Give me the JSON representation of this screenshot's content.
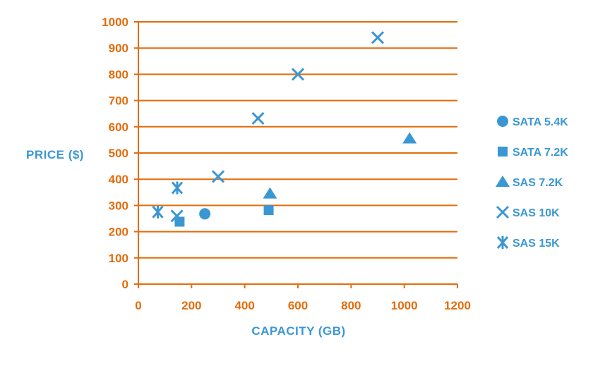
{
  "chart_data": {
    "type": "scatter",
    "title": "",
    "xlabel": "CAPACITY (GB)",
    "ylabel": "PRICE ($)",
    "xlim": [
      0,
      1200
    ],
    "ylim": [
      0,
      1000
    ],
    "xticks": [
      0,
      200,
      400,
      600,
      800,
      1000,
      1200
    ],
    "yticks": [
      0,
      100,
      200,
      300,
      400,
      500,
      600,
      700,
      800,
      900,
      1000
    ],
    "grid": "horizontal",
    "legend_position": "right",
    "axis_color": "#E46C0A",
    "series": [
      {
        "name": "SATA 5.4K",
        "marker": "circle",
        "color": "#3B97D3",
        "points": [
          [
            250,
            268
          ]
        ]
      },
      {
        "name": "SATA 7.2K",
        "marker": "square",
        "color": "#3B97D3",
        "points": [
          [
            155,
            238
          ],
          [
            490,
            282
          ]
        ]
      },
      {
        "name": "SAS 7.2K",
        "marker": "triangle",
        "color": "#3B97D3",
        "points": [
          [
            495,
            345
          ],
          [
            1020,
            555
          ]
        ]
      },
      {
        "name": "SAS 10K",
        "marker": "x",
        "color": "#3B97D3",
        "points": [
          [
            145,
            260
          ],
          [
            300,
            410
          ],
          [
            450,
            632
          ],
          [
            600,
            800
          ],
          [
            900,
            940
          ]
        ]
      },
      {
        "name": "SAS 15K",
        "marker": "asterisk",
        "color": "#3B97D3",
        "points": [
          [
            73,
            275
          ],
          [
            146,
            367
          ]
        ]
      }
    ]
  }
}
